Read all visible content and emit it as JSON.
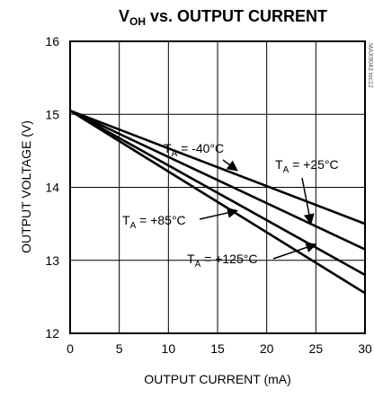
{
  "chart_data": {
    "type": "line",
    "title": {
      "main": "V",
      "sub": "OH",
      "rest": " vs. OUTPUT CURRENT"
    },
    "xlabel": "OUTPUT CURRENT (mA)",
    "ylabel": "OUTPUT VOLTAGE (V)",
    "xlim": [
      0,
      30
    ],
    "ylim": [
      12,
      16
    ],
    "xticks": [
      0,
      5,
      10,
      15,
      20,
      25,
      30
    ],
    "yticks": [
      12,
      13,
      14,
      15,
      16
    ],
    "grid": true,
    "series": [
      {
        "name": "TA = -40°C",
        "x": [
          0,
          30
        ],
        "y": [
          15.05,
          13.5
        ]
      },
      {
        "name": "TA = +25°C",
        "x": [
          0,
          30
        ],
        "y": [
          15.05,
          13.15
        ]
      },
      {
        "name": "TA = +85°C",
        "x": [
          0,
          30
        ],
        "y": [
          15.05,
          12.8
        ]
      },
      {
        "name": "TA = +125°C",
        "x": [
          0,
          30
        ],
        "y": [
          15.05,
          12.55
        ]
      }
    ],
    "annotations": [
      {
        "series": 0,
        "prefix": "T",
        "sub": "A",
        "text": " = -40°C",
        "point": [
          17,
          14.23
        ]
      },
      {
        "series": 1,
        "prefix": "T",
        "sub": "A",
        "text": " = +25°C",
        "point": [
          24.5,
          13.5
        ]
      },
      {
        "series": 2,
        "prefix": "T",
        "sub": "A",
        "text": " = +85°C",
        "point": [
          17,
          13.68
        ]
      },
      {
        "series": 3,
        "prefix": "T",
        "sub": "A",
        "text": " = +125°C",
        "point": [
          25,
          13.22
        ]
      }
    ],
    "figure_id": "MAX9043 toc12"
  }
}
